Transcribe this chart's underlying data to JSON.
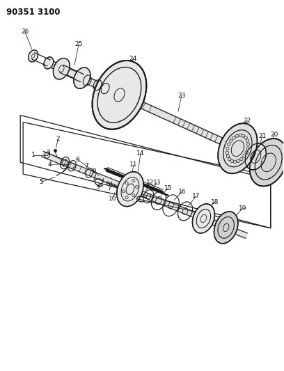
{
  "title": "90351 3100",
  "bg_color": "#ffffff",
  "line_color": "#1a1a1a",
  "title_fontsize": 8.5,
  "label_fontsize": 6.5
}
